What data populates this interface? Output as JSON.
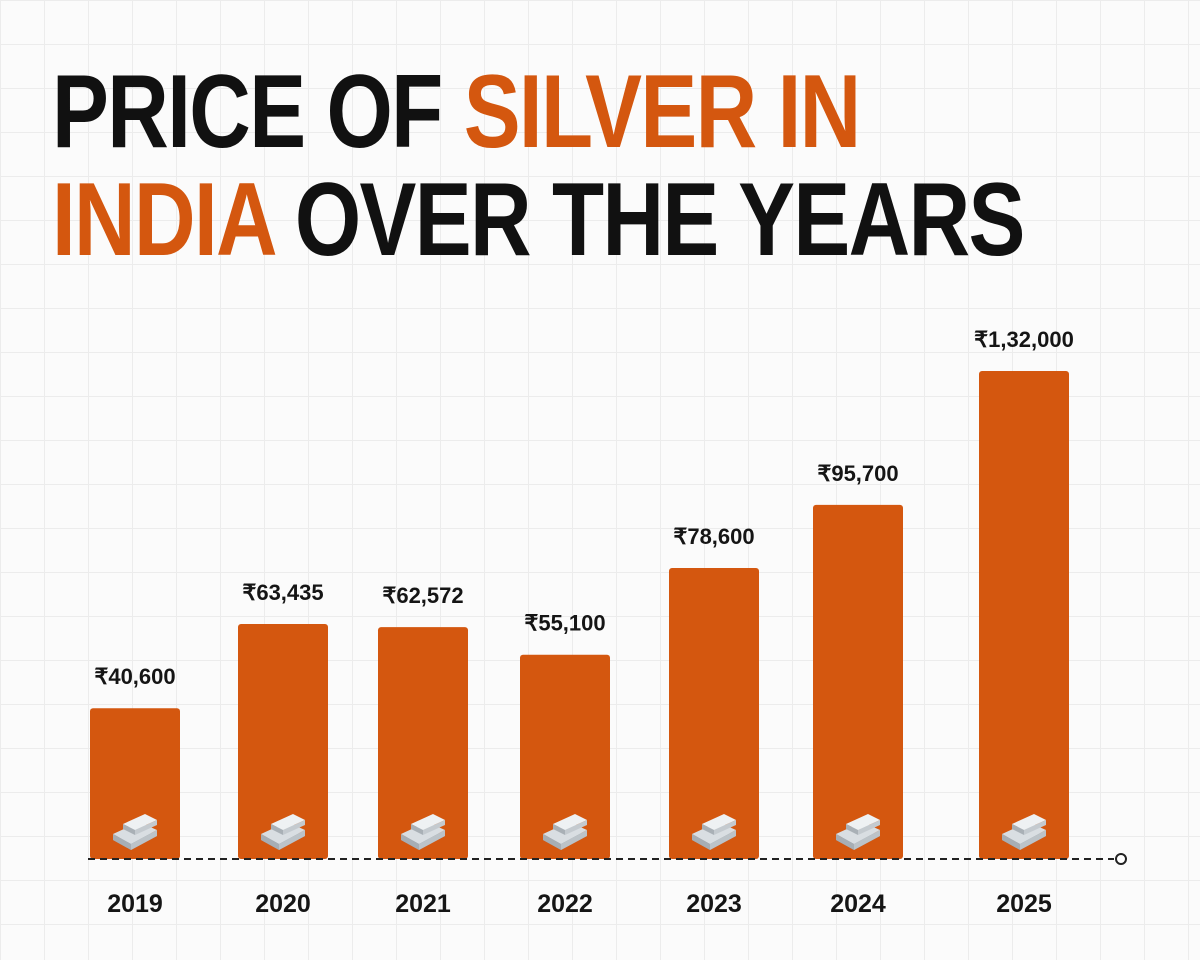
{
  "title": {
    "part1": "PRICE OF ",
    "part2": "SILVER IN",
    "part3": "INDIA",
    "part4": " OVER THE YEARS"
  },
  "colors": {
    "accent": "#d4570f",
    "bar": "#d4570f",
    "text": "#151515"
  },
  "chart_data": {
    "type": "bar",
    "title": "PRICE OF SILVER IN INDIA OVER THE YEARS",
    "categories": [
      "2019",
      "2020",
      "2021",
      "2022",
      "2023",
      "2024",
      "2025"
    ],
    "values": [
      40600,
      63435,
      62572,
      55100,
      78600,
      95700,
      132000
    ],
    "value_labels": [
      "₹40,600",
      "₹63,435",
      "₹62,572",
      "₹55,100",
      "₹78,600",
      "₹95,700",
      "₹1,32,000"
    ],
    "xlabel": "",
    "ylabel": "",
    "ylim": [
      0,
      132000
    ],
    "grid": false,
    "icon": "silver-bars-icon"
  }
}
